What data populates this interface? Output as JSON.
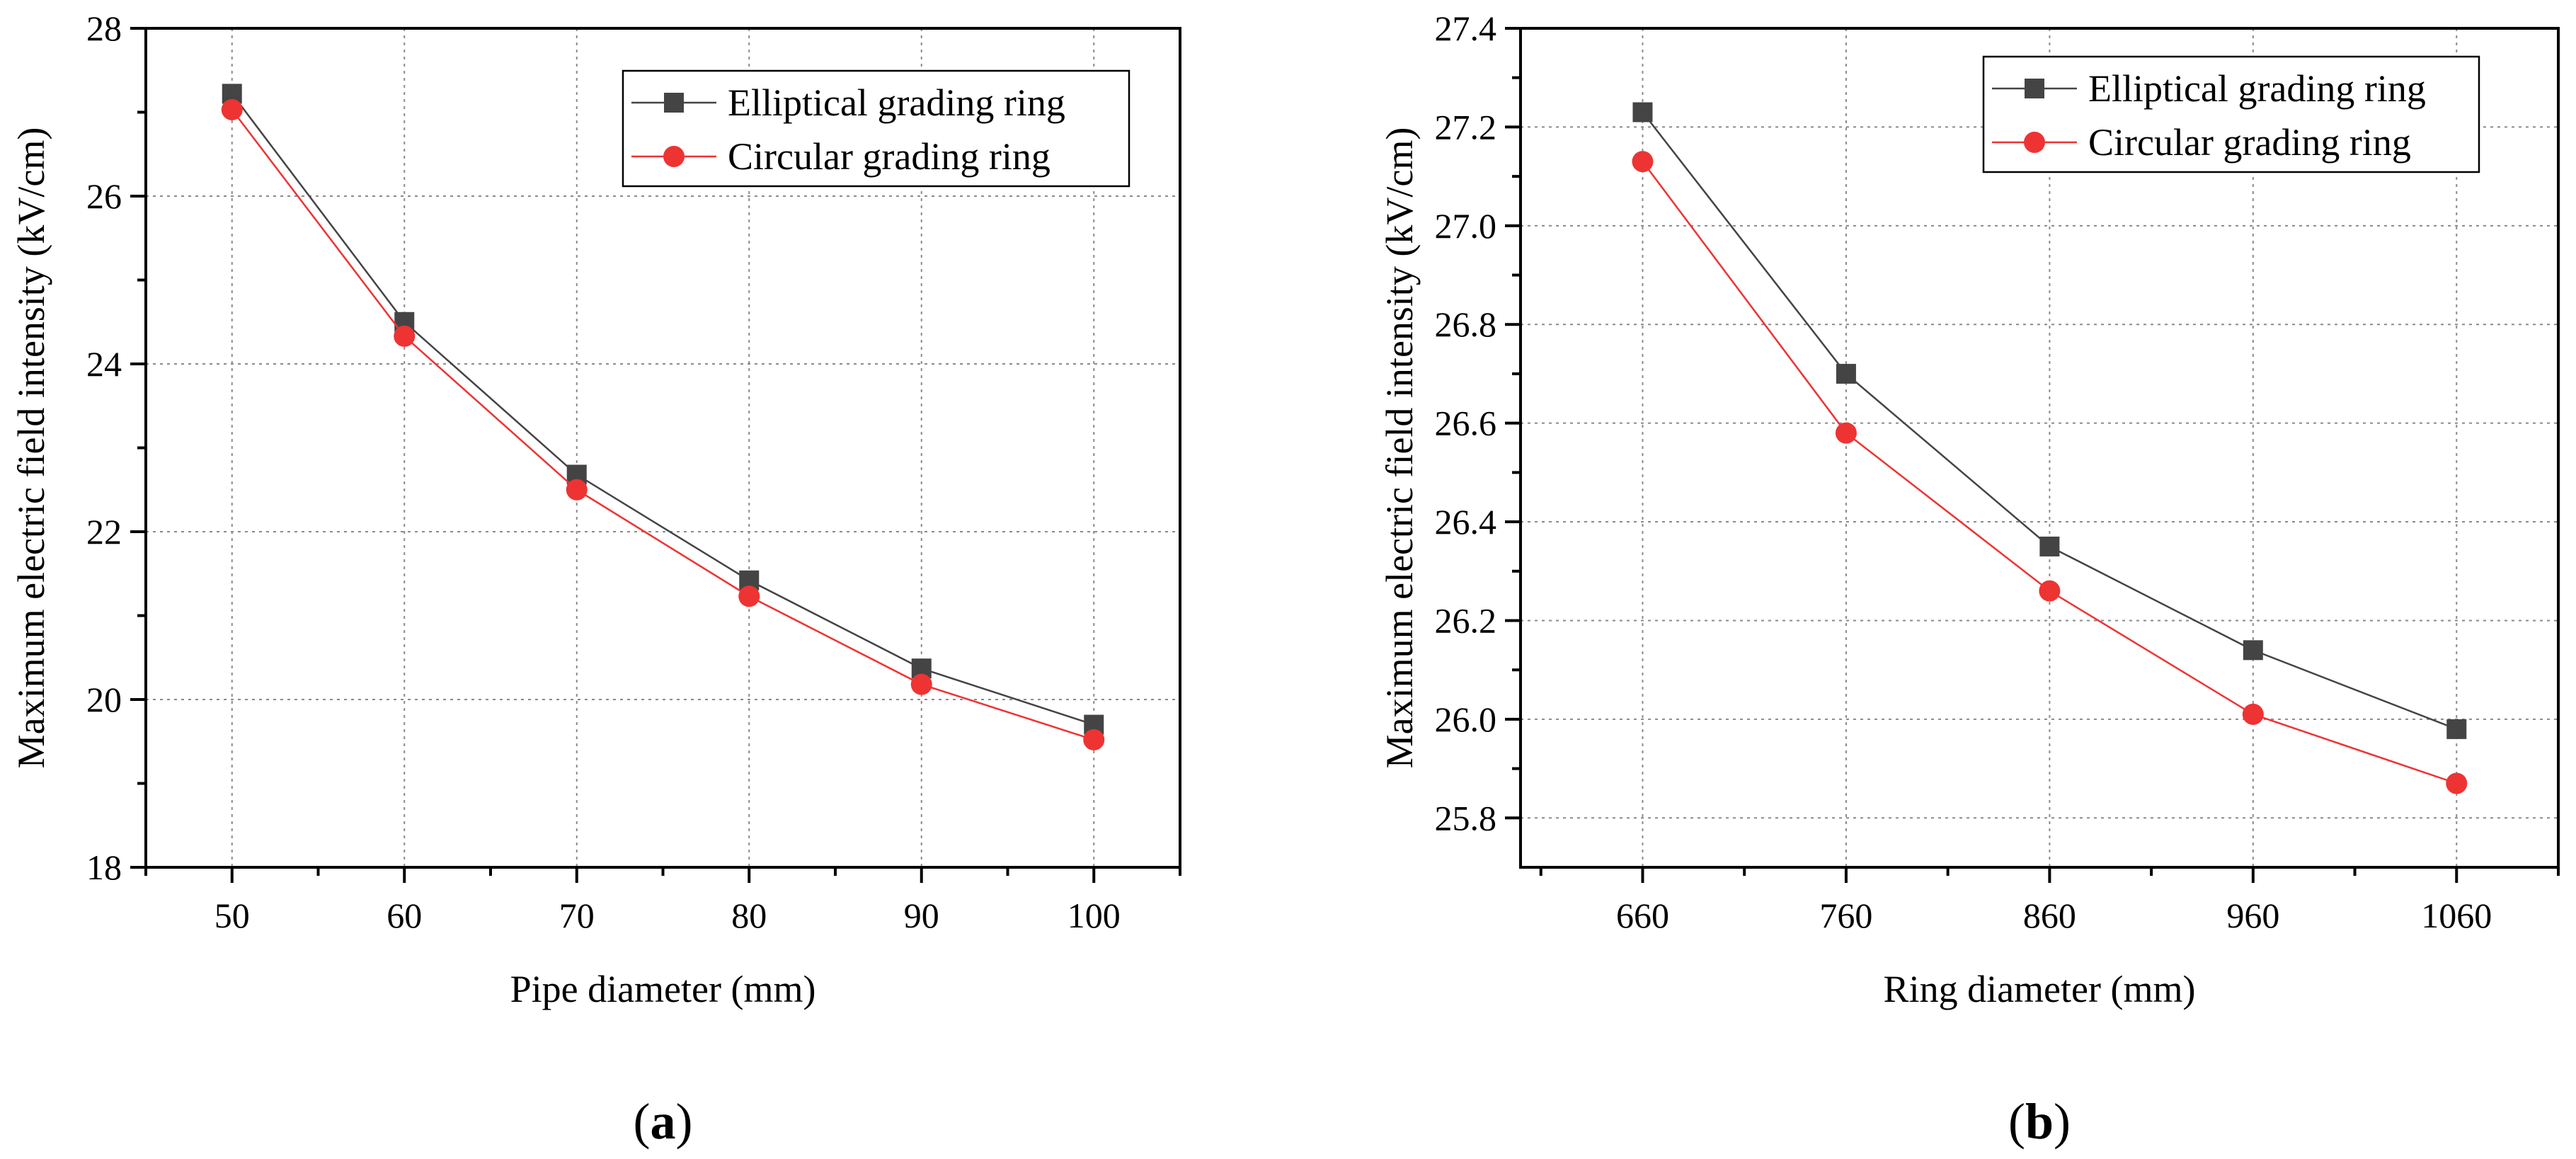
{
  "colors": {
    "elliptical": "#444444",
    "circular": "#ee3333",
    "axis": "#000000",
    "grid": "#8a8a8a"
  },
  "markers": {
    "elliptical": "square",
    "circular": "circle"
  },
  "chart_data": [
    {
      "type": "line",
      "panel_label": {
        "open": "(",
        "letter": "a",
        "close": ")"
      },
      "xlabel": "Pipe diameter (mm)",
      "ylabel": "Maximum electric field intensity (kV/cm)",
      "x": [
        50,
        60,
        70,
        80,
        90,
        100
      ],
      "x_ticks": [
        "50",
        "60",
        "70",
        "80",
        "90",
        "100"
      ],
      "xlim": [
        45,
        105
      ],
      "ylim": [
        18,
        28
      ],
      "y_ticks": [
        18,
        20,
        22,
        24,
        26,
        28
      ],
      "y_tick_labels": [
        "18",
        "20",
        "22",
        "24",
        "26",
        "28"
      ],
      "grid": true,
      "legend_position": "top-right",
      "series": [
        {
          "name": "Elliptical grading ring",
          "values": [
            27.22,
            24.5,
            22.68,
            21.42,
            20.37,
            19.7
          ]
        },
        {
          "name": "Circular grading ring",
          "values": [
            27.03,
            24.33,
            22.5,
            21.23,
            20.18,
            19.52
          ]
        }
      ]
    },
    {
      "type": "line",
      "panel_label": {
        "open": "(",
        "letter": "b",
        "close": ")"
      },
      "xlabel": "Ring diameter (mm)",
      "ylabel": "Maximum electric field intensity (kV/cm)",
      "x": [
        660,
        760,
        860,
        960,
        1060
      ],
      "x_ticks": [
        "660",
        "760",
        "860",
        "960",
        "1060"
      ],
      "xlim": [
        600,
        1110
      ],
      "ylim": [
        25.7,
        27.4
      ],
      "y_ticks": [
        25.8,
        26.0,
        26.2,
        26.4,
        26.6,
        26.8,
        27.0,
        27.2,
        27.4
      ],
      "y_tick_labels": [
        "25.8",
        "26.0",
        "26.2",
        "26.4",
        "26.6",
        "26.8",
        "27.0",
        "27.2",
        "27.4"
      ],
      "grid": true,
      "legend_position": "top-right",
      "series": [
        {
          "name": "Elliptical grading ring",
          "values": [
            27.23,
            26.7,
            26.35,
            26.14,
            25.98
          ]
        },
        {
          "name": "Circular grading ring",
          "values": [
            27.13,
            26.58,
            26.26,
            26.01,
            25.87
          ]
        }
      ]
    }
  ]
}
